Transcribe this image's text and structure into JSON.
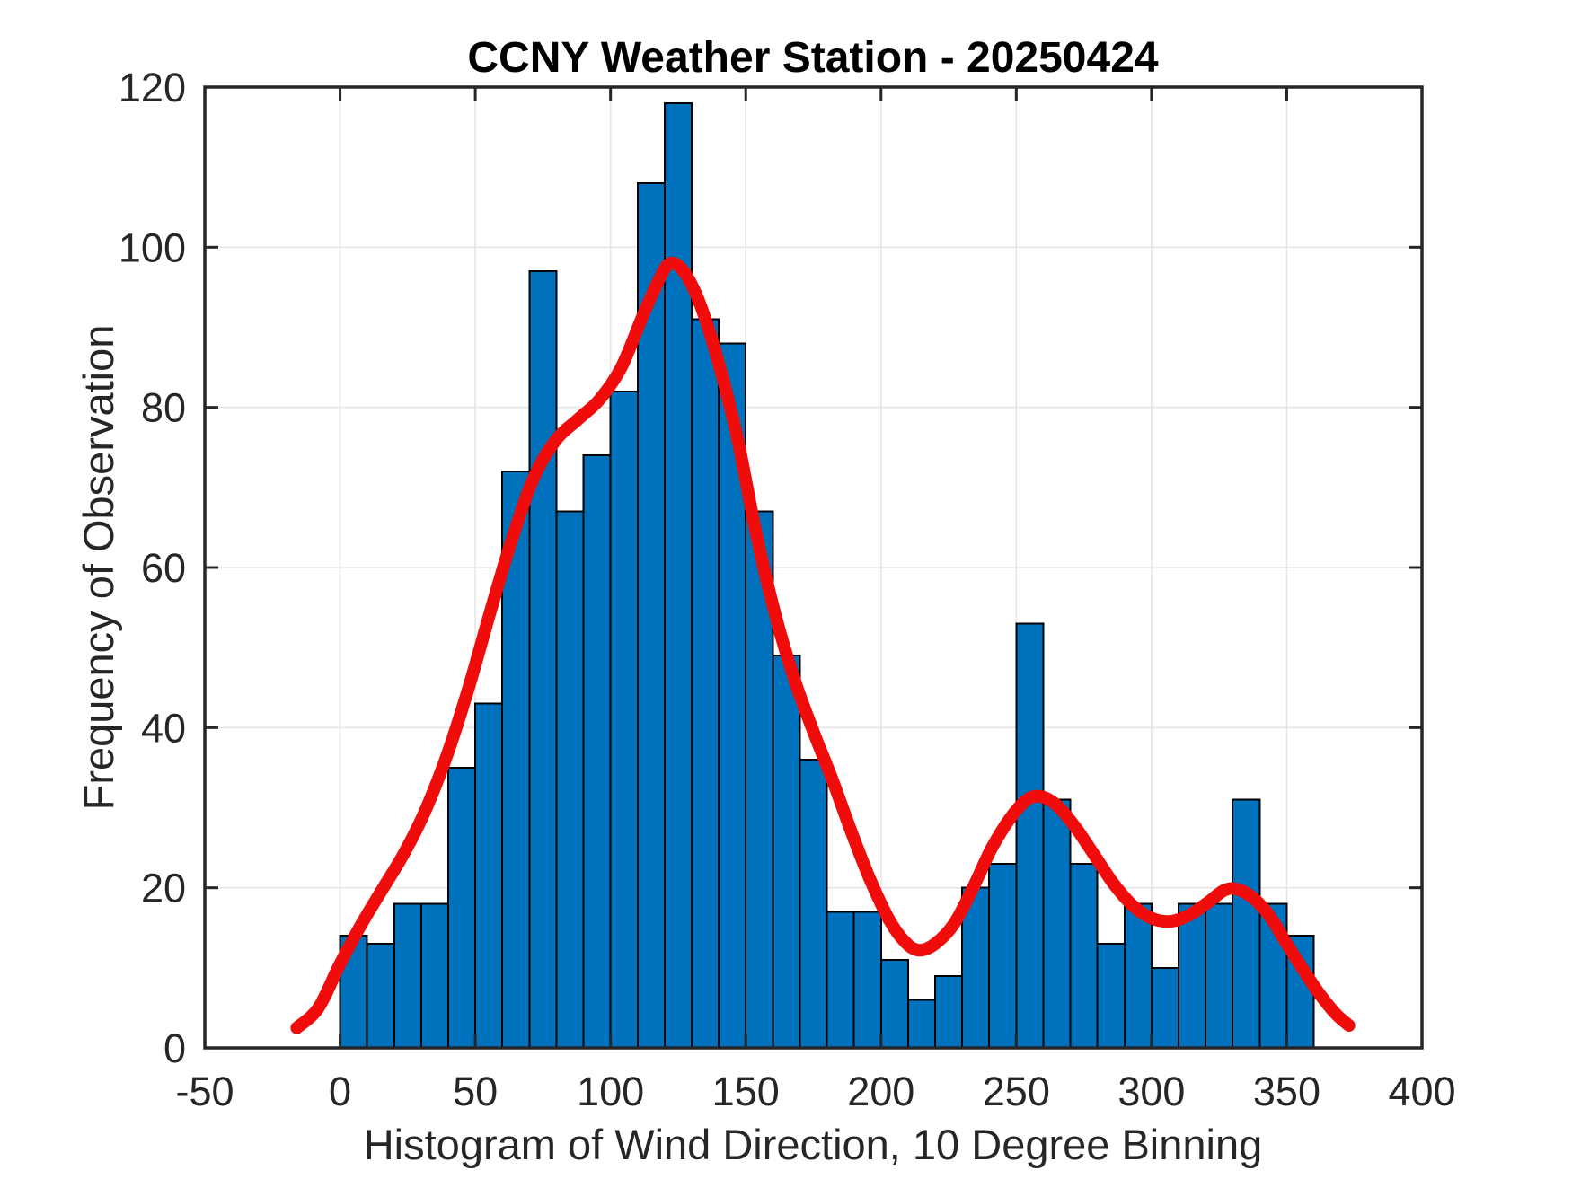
{
  "figure": {
    "background_color": "#ffffff",
    "axes_color": "#262626",
    "grid_color": "#e6e6e6",
    "tick_label_color": "#262626",
    "title_color": "#000000"
  },
  "chart_data": {
    "type": "bar",
    "subtype": "histogram_with_fit_curve",
    "title": "CCNY Weather Station - 20250424",
    "xlabel": "Histogram of Wind Direction, 10 Degree Binning",
    "ylabel": "Frequency of Observation",
    "xlim": [
      -50,
      400
    ],
    "ylim": [
      0,
      120
    ],
    "x_ticks": [
      -50,
      0,
      50,
      100,
      150,
      200,
      250,
      300,
      350,
      400
    ],
    "y_ticks": [
      0,
      20,
      40,
      60,
      80,
      100,
      120
    ],
    "grid": true,
    "legend": "none",
    "bin_width": 10,
    "bin_edges": [
      0,
      10,
      20,
      30,
      40,
      50,
      60,
      70,
      80,
      90,
      100,
      110,
      120,
      130,
      140,
      150,
      160,
      170,
      180,
      190,
      200,
      210,
      220,
      230,
      240,
      250,
      260,
      270,
      280,
      290,
      300,
      310,
      320,
      330,
      340,
      350,
      360
    ],
    "counts": [
      14,
      13,
      18,
      18,
      35,
      43,
      72,
      97,
      67,
      74,
      82,
      108,
      118,
      91,
      88,
      67,
      49,
      36,
      17,
      17,
      11,
      6,
      9,
      20,
      23,
      53,
      31,
      23,
      13,
      18,
      10,
      18,
      18,
      31,
      18,
      14
    ],
    "bar_color": "#0072BD",
    "bar_edge_color": "#000000",
    "fit_curve": {
      "name": "smooth-fit-curve",
      "color": "#F10C0C",
      "line_width": 14,
      "points": [
        [
          -16,
          2.5
        ],
        [
          -8,
          5
        ],
        [
          0,
          10.5
        ],
        [
          8,
          15.5
        ],
        [
          16,
          20
        ],
        [
          24,
          24.5
        ],
        [
          32,
          30
        ],
        [
          40,
          37
        ],
        [
          48,
          45.5
        ],
        [
          56,
          55
        ],
        [
          64,
          64
        ],
        [
          72,
          71.5
        ],
        [
          80,
          76
        ],
        [
          88,
          78.5
        ],
        [
          96,
          81
        ],
        [
          104,
          85
        ],
        [
          112,
          91.5
        ],
        [
          118,
          96
        ],
        [
          122,
          98
        ],
        [
          127,
          97
        ],
        [
          133,
          93
        ],
        [
          140,
          85.5
        ],
        [
          147,
          76
        ],
        [
          154,
          64
        ],
        [
          161,
          54
        ],
        [
          168,
          46
        ],
        [
          175,
          39.5
        ],
        [
          182,
          33.5
        ],
        [
          189,
          27
        ],
        [
          196,
          21
        ],
        [
          203,
          16
        ],
        [
          209,
          13.2
        ],
        [
          214,
          12.2
        ],
        [
          220,
          13
        ],
        [
          227,
          15.5
        ],
        [
          234,
          20
        ],
        [
          241,
          25
        ],
        [
          248,
          28.8
        ],
        [
          254,
          31
        ],
        [
          259,
          31.4
        ],
        [
          265,
          30.3
        ],
        [
          272,
          27.5
        ],
        [
          279,
          24
        ],
        [
          286,
          20.5
        ],
        [
          293,
          17.8
        ],
        [
          300,
          16.2
        ],
        [
          307,
          15.8
        ],
        [
          314,
          16.6
        ],
        [
          321,
          18.2
        ],
        [
          327,
          19.7
        ],
        [
          332,
          19.8
        ],
        [
          338,
          18.6
        ],
        [
          344,
          16.3
        ],
        [
          350,
          13
        ],
        [
          356,
          9.8
        ],
        [
          362,
          6.8
        ],
        [
          368,
          4.3
        ],
        [
          373,
          2.8
        ]
      ]
    }
  }
}
